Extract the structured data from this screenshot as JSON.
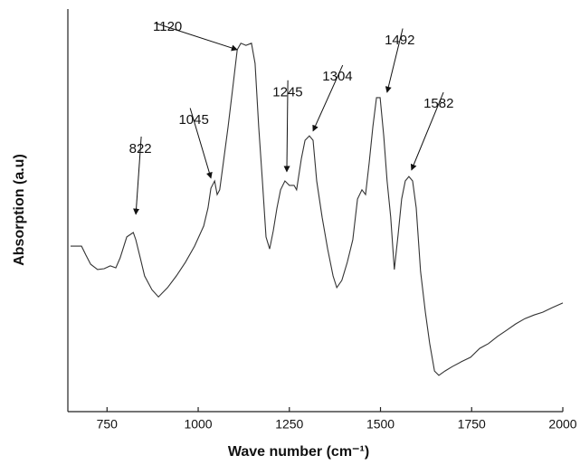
{
  "chart_data": {
    "type": "line",
    "x_label": "Wave number (cm⁻¹)",
    "y_label": "Absorption (a.u)",
    "xlim": [
      650,
      2000
    ],
    "xticks": [
      750,
      1000,
      1250,
      1500,
      1750,
      2000
    ],
    "ylim": [
      0,
      100
    ],
    "color": "#333333",
    "x": [
      650,
      680,
      692,
      705,
      724,
      742,
      759,
      774,
      786,
      804,
      822,
      829,
      841,
      853,
      873,
      891,
      916,
      940,
      965,
      990,
      1015,
      1027,
      1035,
      1045,
      1052,
      1059,
      1069,
      1082,
      1094,
      1107,
      1117,
      1131,
      1146,
      1156,
      1166,
      1176,
      1186,
      1196,
      1206,
      1216,
      1226,
      1238,
      1250,
      1263,
      1270,
      1283,
      1293,
      1305,
      1315,
      1325,
      1340,
      1355,
      1370,
      1380,
      1394,
      1409,
      1424,
      1437,
      1449,
      1459,
      1469,
      1479,
      1489,
      1499,
      1509,
      1518,
      1528,
      1538,
      1548,
      1558,
      1568,
      1578,
      1588,
      1598,
      1610,
      1623,
      1635,
      1648,
      1660,
      1677,
      1697,
      1722,
      1747,
      1772,
      1796,
      1821,
      1846,
      1871,
      1896,
      1921,
      1945,
      1970,
      2000
    ],
    "values": [
      41.1,
      41.1,
      38.9,
      36.6,
      35.3,
      35.5,
      36.2,
      35.7,
      38.2,
      43.4,
      44.5,
      42.7,
      38.2,
      33.7,
      30.3,
      28.5,
      30.8,
      33.7,
      37.1,
      41.1,
      46.1,
      50.6,
      55.5,
      57.3,
      53.9,
      55.1,
      61.8,
      70.8,
      79.8,
      89.9,
      91.5,
      91.0,
      91.5,
      86.5,
      70.8,
      57.3,
      43.4,
      40.4,
      44.9,
      50.6,
      55.1,
      57.3,
      56.2,
      56.2,
      55.1,
      62.9,
      67.4,
      68.5,
      67.4,
      57.3,
      48.3,
      40.4,
      33.7,
      30.8,
      32.6,
      37.1,
      42.7,
      52.8,
      55.1,
      53.9,
      61.8,
      70.8,
      78.0,
      78.0,
      68.5,
      57.3,
      48.3,
      35.3,
      43.8,
      52.8,
      57.3,
      58.4,
      57.3,
      50.6,
      34.8,
      24.7,
      16.9,
      10.1,
      9.0,
      10.1,
      11.2,
      12.4,
      13.5,
      15.7,
      16.9,
      18.7,
      20.2,
      21.8,
      23.1,
      24.0,
      24.7,
      25.8,
      27.0
    ],
    "annotations": [
      {
        "text": "822",
        "x": 829,
        "y": 49.0
      },
      {
        "text": "1045",
        "x": 1035,
        "y": 58.0
      },
      {
        "text": "1120",
        "x": 1107,
        "y": 89.9
      },
      {
        "text": "1245",
        "x": 1243,
        "y": 59.6
      },
      {
        "text": "1304",
        "x": 1315,
        "y": 69.7
      },
      {
        "text": "1492",
        "x": 1518,
        "y": 79.3
      },
      {
        "text": "1582",
        "x": 1585,
        "y": 60.0
      }
    ]
  }
}
